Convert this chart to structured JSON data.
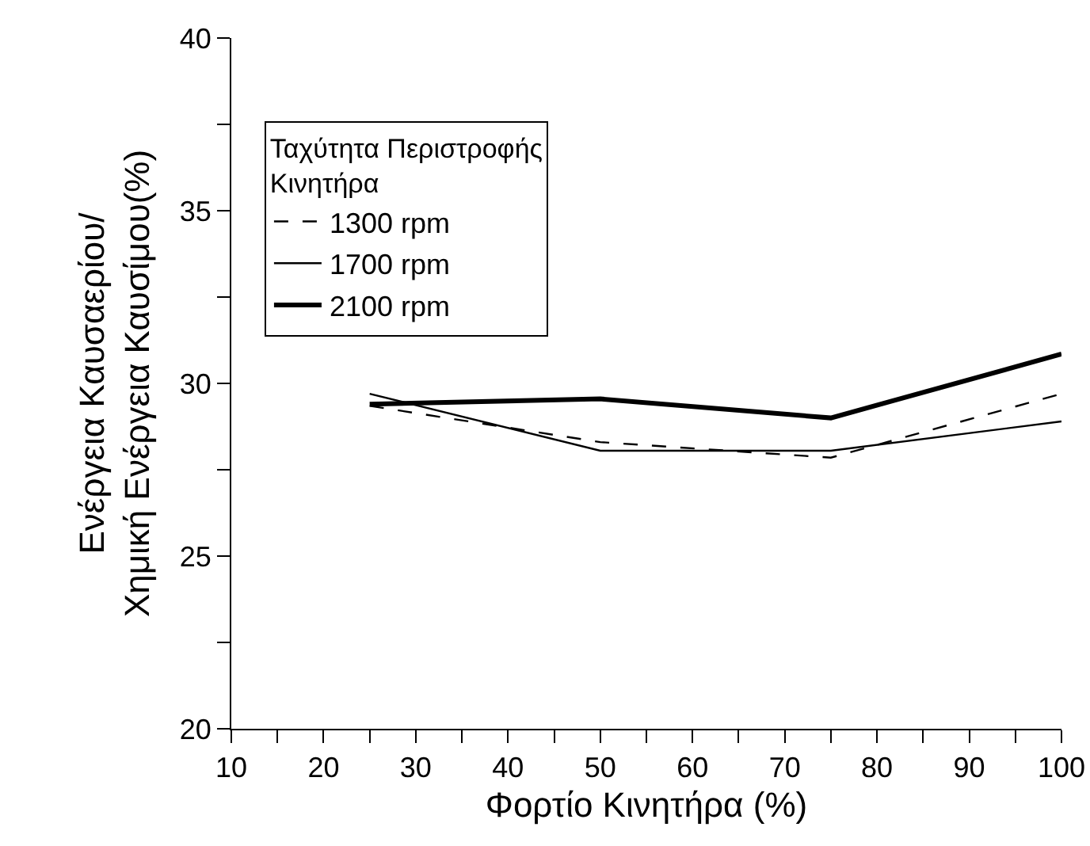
{
  "chart_data": {
    "type": "line",
    "xlabel": "Φορτίο Κινητήρα (%)",
    "ylabel": "Ενέργεια Καυσαερίου/\nΧημική Ενέργεια Καυσίμου(%)",
    "legend_title": "Ταχύτητα Περιστροφής\nΚινητήρα",
    "x": [
      25,
      50,
      75,
      100
    ],
    "series": [
      {
        "name": "1300 rpm",
        "color": "#000000",
        "line_style": "dashed",
        "values": [
          29.35,
          28.3,
          27.85,
          29.7
        ]
      },
      {
        "name": "1700 rpm",
        "color": "#000000",
        "line_style": "solid",
        "values": [
          29.7,
          28.05,
          28.05,
          28.9
        ]
      },
      {
        "name": "2100 rpm",
        "color": "#000000",
        "line_style": "solid",
        "values": [
          29.4,
          29.55,
          29.0,
          30.85
        ]
      }
    ],
    "xlim": [
      10,
      100
    ],
    "xticks": [
      10,
      {
        "value": 15,
        "label": null
      },
      20,
      {
        "value": 25,
        "label": null
      },
      30,
      {
        "value": 35,
        "label": null
      },
      40,
      {
        "value": 45,
        "label": null
      },
      50,
      {
        "value": 55,
        "label": null
      },
      60,
      {
        "value": 65,
        "label": null
      },
      70,
      {
        "value": 75,
        "label": null
      },
      80,
      {
        "value": 85,
        "label": null
      },
      90,
      {
        "value": 95,
        "label": null
      },
      100
    ],
    "ylim": [
      20,
      40
    ],
    "yticks": [
      20,
      {
        "value": 22.5,
        "label": null
      },
      25,
      {
        "value": 27.5,
        "label": null
      },
      30,
      {
        "value": 32.5,
        "label": null
      },
      35,
      {
        "value": 37.5,
        "label": null
      },
      40
    ],
    "grid": false,
    "legend": "top left",
    "marker": "none"
  }
}
